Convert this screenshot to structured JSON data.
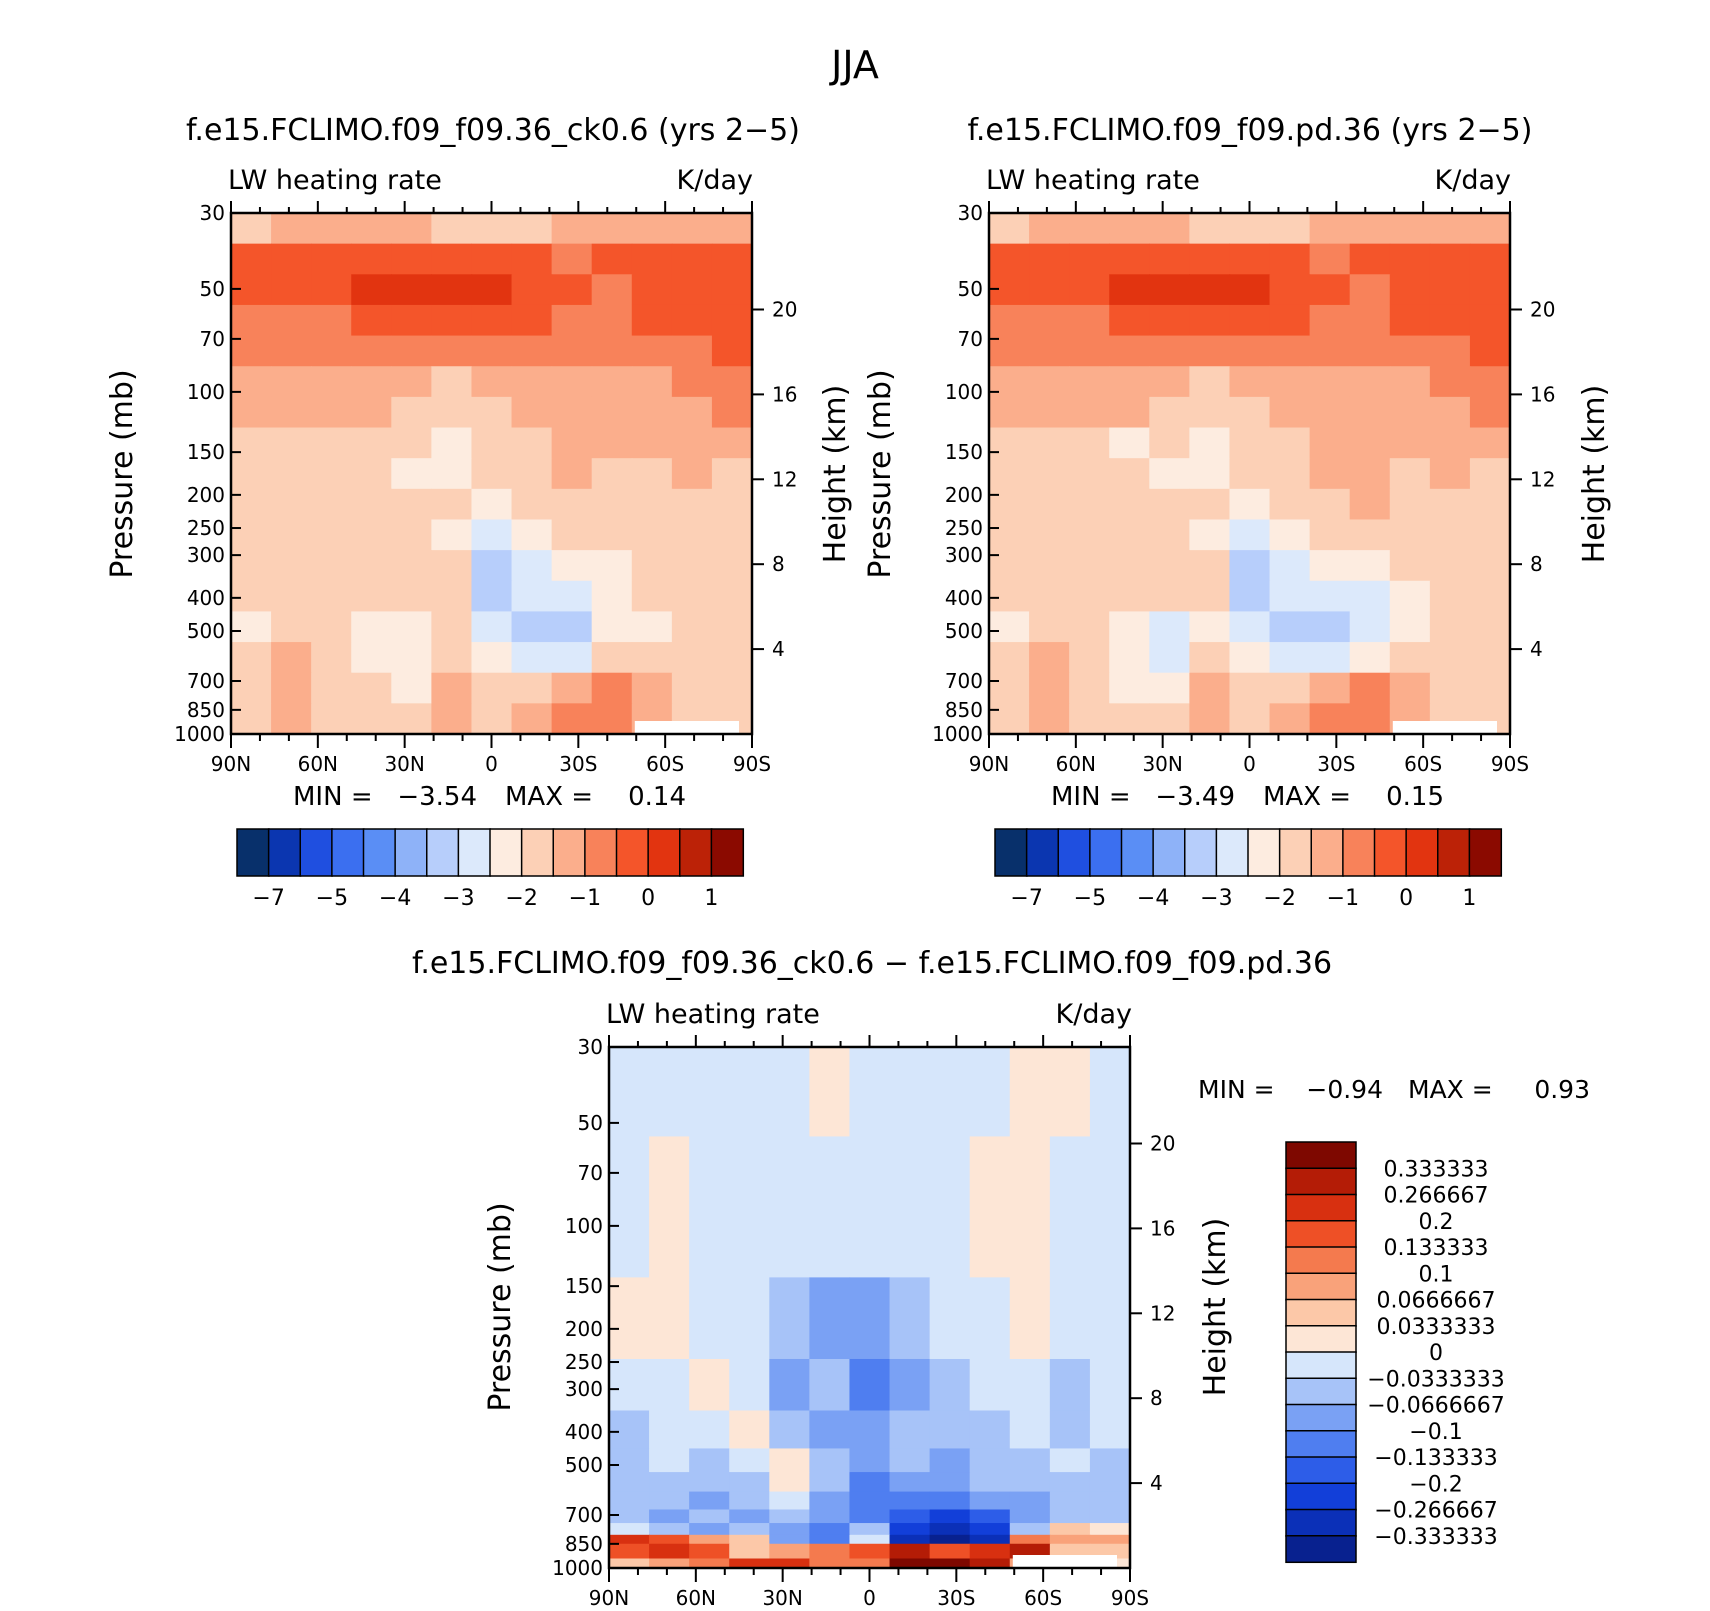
{
  "figure_title": "JJA",
  "colors": {
    "ramp16": [
      "#08306b",
      "#0b36b0",
      "#1f4fe0",
      "#3b6ff0",
      "#5a8ef5",
      "#8eb2f8",
      "#b7cefb",
      "#dce9fb",
      "#fdece0",
      "#fcd0b6",
      "#fbae8c",
      "#f8825a",
      "#f4552a",
      "#e23410",
      "#bc2207",
      "#8b0a00"
    ],
    "ramp16_diff": [
      "#08218f",
      "#0b30b8",
      "#123fd9",
      "#2d5de8",
      "#4f7ef0",
      "#7aa1f4",
      "#a7c3f8",
      "#d6e6fb",
      "#fde6d6",
      "#fcc8a8",
      "#f9a27a",
      "#f47a4e",
      "#ee5026",
      "#d83010",
      "#b41c06",
      "#7e0800"
    ]
  },
  "chart_data": [
    {
      "type": "heatmap",
      "id": "panel-a",
      "title": "f.e15.FCLIMO.f09_f09.36_ck0.6 (yrs 2−5)",
      "left_label": "LW heating rate",
      "right_label": "K/day",
      "ylabel": "Pressure (mb)",
      "y2label": "Height (km)",
      "x_ticks": [
        "90N",
        "60N",
        "30N",
        "0",
        "30S",
        "60S",
        "90S"
      ],
      "x_values": [
        90,
        60,
        30,
        0,
        -30,
        -60,
        -90
      ],
      "y_ticks": [
        30,
        50,
        70,
        100,
        150,
        200,
        250,
        300,
        400,
        500,
        700,
        850,
        1000
      ],
      "y_tick_labels": [
        "30",
        "50",
        "70",
        "100",
        "150",
        "200",
        "250",
        "300",
        "400",
        "500",
        "700",
        "850",
        "1000"
      ],
      "y_range": [
        30,
        1000
      ],
      "y2_ticks": [
        20,
        16,
        12,
        8,
        4
      ],
      "y2_tick_labels": [
        "20",
        "16",
        "12",
        "8",
        "4"
      ],
      "min_label": "MIN =",
      "min_value": "−3.54",
      "max_label": "MAX =",
      "max_value": "0.14",
      "colorbar_labels": [
        "−7",
        "−5",
        "−4",
        "−3",
        "−2",
        "−1",
        "0",
        "1"
      ],
      "colorbar_label_bins": [
        1,
        3,
        5,
        7,
        9,
        11,
        13,
        15
      ],
      "field": [
        [
          9,
          10,
          10,
          10,
          10,
          9,
          9,
          9,
          10,
          10,
          10,
          10,
          10
        ],
        [
          12,
          12,
          12,
          12,
          12,
          12,
          12,
          12,
          11,
          12,
          12,
          12,
          12
        ],
        [
          12,
          12,
          12,
          13,
          13,
          13,
          13,
          12,
          12,
          11,
          12,
          12,
          12
        ],
        [
          11,
          11,
          11,
          12,
          12,
          12,
          12,
          12,
          11,
          11,
          12,
          12,
          12
        ],
        [
          11,
          11,
          11,
          11,
          11,
          11,
          11,
          11,
          11,
          11,
          11,
          11,
          12
        ],
        [
          10,
          10,
          10,
          10,
          10,
          9,
          10,
          10,
          10,
          10,
          10,
          11,
          11
        ],
        [
          10,
          10,
          10,
          10,
          9,
          9,
          9,
          10,
          10,
          10,
          10,
          10,
          11
        ],
        [
          9,
          9,
          9,
          9,
          9,
          8,
          9,
          9,
          10,
          10,
          10,
          10,
          10
        ],
        [
          9,
          9,
          9,
          9,
          8,
          8,
          9,
          9,
          10,
          9,
          9,
          10,
          9
        ],
        [
          9,
          9,
          9,
          9,
          9,
          9,
          8,
          9,
          9,
          9,
          9,
          9,
          9
        ],
        [
          9,
          9,
          9,
          9,
          9,
          8,
          7,
          8,
          9,
          9,
          9,
          9,
          9
        ],
        [
          9,
          9,
          9,
          9,
          9,
          9,
          6,
          7,
          8,
          8,
          9,
          9,
          9
        ],
        [
          9,
          9,
          9,
          9,
          9,
          9,
          6,
          7,
          7,
          8,
          9,
          9,
          9
        ],
        [
          8,
          9,
          9,
          8,
          8,
          9,
          7,
          6,
          6,
          8,
          8,
          9,
          9
        ],
        [
          9,
          10,
          9,
          8,
          8,
          9,
          8,
          7,
          7,
          9,
          9,
          9,
          9
        ],
        [
          9,
          10,
          9,
          9,
          8,
          10,
          9,
          9,
          10,
          11,
          10,
          9,
          9
        ],
        [
          9,
          10,
          9,
          9,
          9,
          10,
          9,
          10,
          11,
          11,
          10,
          9,
          9
        ]
      ]
    },
    {
      "type": "heatmap",
      "id": "panel-b",
      "title": "f.e15.FCLIMO.f09_f09.pd.36 (yrs 2−5)",
      "left_label": "LW heating rate",
      "right_label": "K/day",
      "ylabel": "Pressure (mb)",
      "y2label": "Height (km)",
      "x_ticks": [
        "90N",
        "60N",
        "30N",
        "0",
        "30S",
        "60S",
        "90S"
      ],
      "x_values": [
        90,
        60,
        30,
        0,
        -30,
        -60,
        -90
      ],
      "y_ticks": [
        30,
        50,
        70,
        100,
        150,
        200,
        250,
        300,
        400,
        500,
        700,
        850,
        1000
      ],
      "y_tick_labels": [
        "30",
        "50",
        "70",
        "100",
        "150",
        "200",
        "250",
        "300",
        "400",
        "500",
        "700",
        "850",
        "1000"
      ],
      "y_range": [
        30,
        1000
      ],
      "y2_ticks": [
        20,
        16,
        12,
        8,
        4
      ],
      "y2_tick_labels": [
        "20",
        "16",
        "12",
        "8",
        "4"
      ],
      "min_label": "MIN =",
      "min_value": "−3.49",
      "max_label": "MAX =",
      "max_value": "0.15",
      "colorbar_labels": [
        "−7",
        "−5",
        "−4",
        "−3",
        "−2",
        "−1",
        "0",
        "1"
      ],
      "colorbar_label_bins": [
        1,
        3,
        5,
        7,
        9,
        11,
        13,
        15
      ],
      "field": [
        [
          9,
          10,
          10,
          10,
          10,
          9,
          9,
          9,
          10,
          10,
          10,
          10,
          10
        ],
        [
          12,
          12,
          12,
          12,
          12,
          12,
          12,
          12,
          11,
          12,
          12,
          12,
          12
        ],
        [
          12,
          12,
          12,
          13,
          13,
          13,
          13,
          12,
          12,
          11,
          12,
          12,
          12
        ],
        [
          11,
          11,
          11,
          12,
          12,
          12,
          12,
          12,
          11,
          11,
          12,
          12,
          12
        ],
        [
          11,
          11,
          11,
          11,
          11,
          11,
          11,
          11,
          11,
          11,
          11,
          11,
          12
        ],
        [
          10,
          10,
          10,
          10,
          10,
          9,
          10,
          10,
          10,
          10,
          10,
          11,
          11
        ],
        [
          10,
          10,
          10,
          10,
          9,
          9,
          9,
          10,
          10,
          10,
          10,
          10,
          11
        ],
        [
          9,
          9,
          9,
          8,
          9,
          8,
          9,
          9,
          10,
          10,
          10,
          10,
          10
        ],
        [
          9,
          9,
          9,
          9,
          8,
          8,
          9,
          9,
          10,
          10,
          9,
          10,
          9
        ],
        [
          9,
          9,
          9,
          9,
          9,
          9,
          8,
          9,
          9,
          10,
          9,
          9,
          9
        ],
        [
          9,
          9,
          9,
          9,
          9,
          8,
          7,
          8,
          9,
          9,
          9,
          9,
          9
        ],
        [
          9,
          9,
          9,
          9,
          9,
          9,
          6,
          7,
          8,
          8,
          9,
          9,
          9
        ],
        [
          9,
          9,
          9,
          9,
          9,
          9,
          6,
          7,
          7,
          7,
          8,
          9,
          9
        ],
        [
          8,
          9,
          9,
          8,
          7,
          8,
          7,
          6,
          6,
          7,
          8,
          9,
          9
        ],
        [
          9,
          10,
          9,
          8,
          7,
          9,
          8,
          7,
          7,
          8,
          9,
          9,
          9
        ],
        [
          9,
          10,
          9,
          8,
          8,
          10,
          9,
          9,
          10,
          11,
          10,
          9,
          9
        ],
        [
          9,
          10,
          9,
          9,
          9,
          10,
          9,
          10,
          11,
          11,
          10,
          9,
          9
        ]
      ]
    },
    {
      "type": "heatmap",
      "id": "panel-c",
      "title": "f.e15.FCLIMO.f09_f09.36_ck0.6 − f.e15.FCLIMO.f09_f09.pd.36",
      "left_label": "LW heating rate",
      "right_label": "K/day",
      "ylabel": "Pressure (mb)",
      "y2label": "Height (km)",
      "x_ticks": [
        "90N",
        "60N",
        "30N",
        "0",
        "30S",
        "60S",
        "90S"
      ],
      "x_values": [
        90,
        60,
        30,
        0,
        -30,
        -60,
        -90
      ],
      "y_ticks": [
        30,
        50,
        70,
        100,
        150,
        200,
        250,
        300,
        400,
        500,
        700,
        850,
        1000
      ],
      "y_tick_labels": [
        "30",
        "50",
        "70",
        "100",
        "150",
        "200",
        "250",
        "300",
        "400",
        "500",
        "700",
        "850",
        "1000"
      ],
      "y_range": [
        30,
        1000
      ],
      "y2_ticks": [
        20,
        16,
        12,
        8,
        4
      ],
      "y2_tick_labels": [
        "20",
        "16",
        "12",
        "8",
        "4"
      ],
      "min_label": "MIN =",
      "min_value": "−0.94",
      "max_label": "MAX =",
      "max_value": "0.93",
      "colorbar_labels": [
        "0.333333",
        "0.266667",
        "0.2",
        "0.133333",
        "0.1",
        "0.0666667",
        "0.0333333",
        "0",
        "−0.0333333",
        "−0.0666667",
        "−0.1",
        "−0.133333",
        "−0.2",
        "−0.266667",
        "−0.333333"
      ],
      "field": [
        [
          7,
          7,
          7,
          7,
          7,
          8,
          7,
          7,
          7,
          7,
          8,
          8,
          7
        ],
        [
          7,
          8,
          7,
          7,
          7,
          7,
          7,
          7,
          7,
          8,
          8,
          7,
          7
        ],
        [
          8,
          8,
          7,
          7,
          6,
          5,
          5,
          6,
          7,
          7,
          8,
          7,
          7
        ],
        [
          7,
          7,
          8,
          7,
          5,
          6,
          4,
          5,
          6,
          7,
          7,
          6,
          7
        ],
        [
          6,
          7,
          7,
          8,
          6,
          5,
          5,
          6,
          6,
          6,
          7,
          6,
          7
        ],
        [
          6,
          7,
          6,
          7,
          8,
          6,
          5,
          6,
          5,
          6,
          6,
          7,
          6
        ],
        [
          6,
          6,
          6,
          6,
          8,
          6,
          4,
          5,
          5,
          6,
          6,
          6,
          6
        ],
        [
          6,
          6,
          5,
          6,
          7,
          5,
          4,
          4,
          4,
          5,
          5,
          6,
          6
        ],
        [
          6,
          5,
          6,
          5,
          6,
          5,
          4,
          3,
          2,
          3,
          5,
          6,
          6
        ],
        [
          7,
          6,
          5,
          6,
          5,
          4,
          6,
          2,
          1,
          2,
          6,
          9,
          8
        ],
        [
          13,
          12,
          10,
          9,
          5,
          4,
          7,
          1,
          0,
          1,
          11,
          10,
          10
        ],
        [
          12,
          13,
          12,
          9,
          10,
          11,
          12,
          14,
          12,
          13,
          14,
          9,
          9
        ],
        [
          9,
          10,
          11,
          13,
          13,
          11,
          11,
          15,
          15,
          14,
          10,
          8,
          8
        ]
      ],
      "field_rows_top_to_bottom_pressure": [
        30,
        100,
        200,
        300,
        400,
        500,
        550,
        650,
        700,
        780,
        820,
        880,
        1000
      ]
    }
  ]
}
